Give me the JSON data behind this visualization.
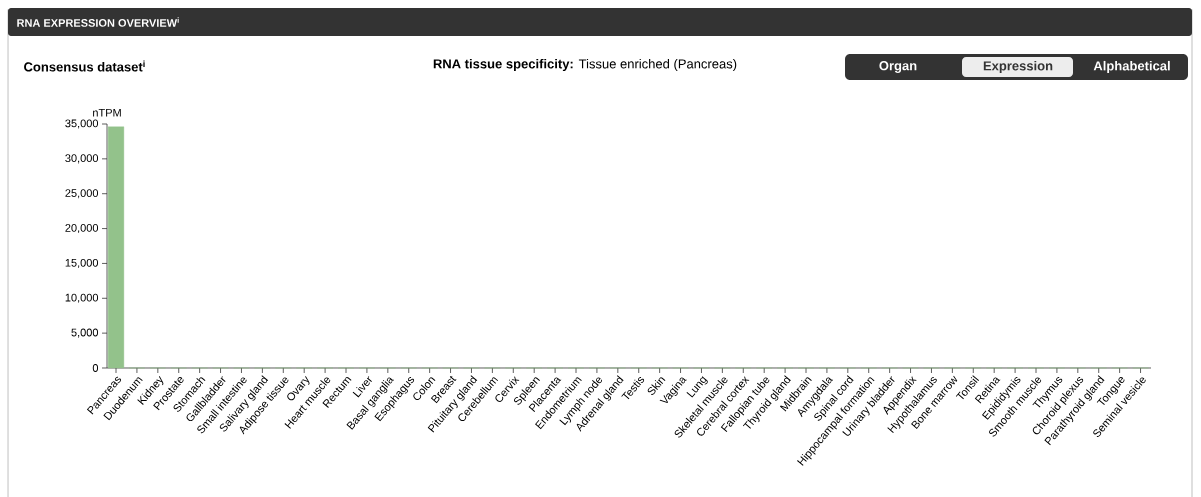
{
  "chart_data": {
    "type": "bar",
    "title": "RNA EXPRESSION OVERVIEW$^{i}$",
    "subtitle": "Consensus dataset$^{i}$",
    "annotations": [
      "**RNA tissue specificity:** Tissue enriched (Pancreas)",
      "Organ",
      "Expression",
      "Alphabetical"
    ],
    "ylabel": "nTPM",
    "categories": [
      "Pancreas",
      "Duodenum",
      "Kidney",
      "Prostate",
      "Stomach",
      "Gallbladder",
      "Small intestine",
      "Salivary gland",
      "Adipose tissue",
      "Ovary",
      "Heart muscle",
      "Rectum",
      "Liver",
      "Basal ganglia",
      "Esophagus",
      "Colon",
      "Breast",
      "Pituitary gland",
      "Cerebellum",
      "Cervix",
      "Spleen",
      "Placenta",
      "Endometrium",
      "Lymph node",
      "Adrenal gland",
      "Testis",
      "Skin",
      "Vagina",
      "Lung",
      "Skeletal muscle",
      "Cerebral cortex",
      "Fallopian tube",
      "Thyroid gland",
      "Midbrain",
      "Amygdala",
      "Spinal cord",
      "Hippocampal formation",
      "Urinary bladder",
      "Appendix",
      "Hypothalamus",
      "Bone marrow",
      "Tonsil",
      "Retina",
      "Epididymis",
      "Smooth muscle",
      "Thymus",
      "Choroid plexus",
      "Parathyroid gland",
      "Tongue",
      "Seminal vesicle"
    ],
    "values": [
      34600,
      0,
      0,
      0,
      0,
      0,
      0,
      0,
      0,
      0,
      0,
      0,
      0,
      0,
      0,
      0,
      0,
      0,
      0,
      0,
      0,
      0,
      0,
      0,
      0,
      0,
      0,
      0,
      0,
      0,
      0,
      0,
      0,
      0,
      0,
      0,
      0,
      0,
      0,
      0,
      0,
      0,
      0,
      0,
      0,
      0,
      0,
      0,
      0,
      0
    ],
    "color": "#93c28b",
    "ylim": [
      0,
      35000
    ],
    "yticks": [
      {
        "value": 0,
        "label": "0"
      },
      {
        "value": 5000,
        "label": "5,000"
      },
      {
        "value": 10000,
        "label": "10,000"
      },
      {
        "value": 15000,
        "label": "15,000"
      },
      {
        "value": 20000,
        "label": "20,000"
      },
      {
        "value": 25000,
        "label": "25,000"
      },
      {
        "value": 30000,
        "label": "30,000"
      },
      {
        "value": 35000,
        "label": "35,000"
      }
    ]
  }
}
